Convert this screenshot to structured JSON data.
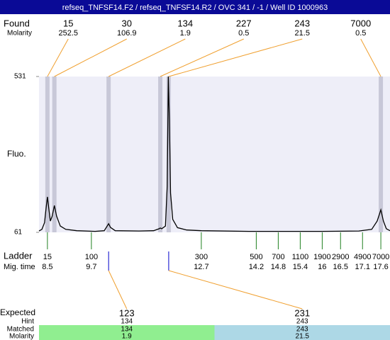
{
  "chart_data": {
    "type": "electropherogram",
    "title": "refseq_TNFSF14.F2 / refseq_TNFSF14.R2 / OVC 341  / -1  / Well ID 1000963",
    "y_label": "Fluo.",
    "xlim": [
      8.27,
      17.85
    ],
    "ylim": [
      61,
      531
    ],
    "yticks": [
      61,
      531
    ],
    "trace": {
      "color": "#000000",
      "x": [
        8.27,
        8.35,
        8.42,
        8.47,
        8.5,
        8.53,
        8.58,
        8.63,
        8.69,
        8.75,
        8.85,
        9.0,
        9.3,
        9.8,
        10.05,
        10.12,
        10.17,
        10.22,
        10.35,
        11.0,
        11.4,
        11.55,
        11.58,
        11.62,
        11.72,
        11.77,
        11.8,
        11.83,
        11.86,
        11.92,
        12.05,
        12.3,
        12.7,
        14.0,
        15.0,
        16.0,
        17.0,
        17.35,
        17.5,
        17.6,
        17.67,
        17.75,
        17.85
      ],
      "y": [
        65,
        70,
        90,
        140,
        168,
        140,
        95,
        110,
        142,
        110,
        80,
        70,
        66,
        64,
        66,
        78,
        87,
        76,
        66,
        65,
        66,
        72,
        74,
        72,
        80,
        200,
        531,
        400,
        180,
        100,
        75,
        68,
        66,
        64,
        64,
        64,
        65,
        70,
        95,
        129,
        95,
        72,
        66
      ]
    },
    "band_color": "#c8c8d8",
    "plot_color": "#eeeef8",
    "found": {
      "label": "Found",
      "molarity_label": "Molarity",
      "color": "#f0a030",
      "sizes": [
        15,
        30,
        134,
        227,
        243,
        7000
      ],
      "molarity": [
        252.5,
        106.9,
        1.9,
        0.5,
        21.5,
        0.5
      ],
      "times": [
        8.5,
        8.69,
        10.17,
        11.58,
        11.81,
        17.6
      ]
    },
    "ladder": {
      "label": "Ladder",
      "time_label": "Mig. time",
      "color": "#208020",
      "sizes": [
        15,
        100,
        300,
        500,
        700,
        1100,
        1900,
        2900,
        4900,
        7000
      ],
      "times": [
        8.5,
        9.7,
        12.7,
        14.2,
        14.8,
        15.4,
        16,
        16.5,
        17.1,
        17.6
      ]
    },
    "expected": {
      "label": "Expected",
      "hint_label": "Hint",
      "matched_label": "Matched",
      "molarity_label": "Molarity",
      "marker_color": "#0000cc",
      "colors": [
        "#90ee90",
        "#add8e6"
      ],
      "sizes": [
        123,
        231
      ],
      "hint": [
        134,
        243
      ],
      "matched": [
        134,
        243
      ],
      "molarity": [
        1.9,
        21.5
      ],
      "times": [
        10.17,
        11.81
      ]
    }
  }
}
